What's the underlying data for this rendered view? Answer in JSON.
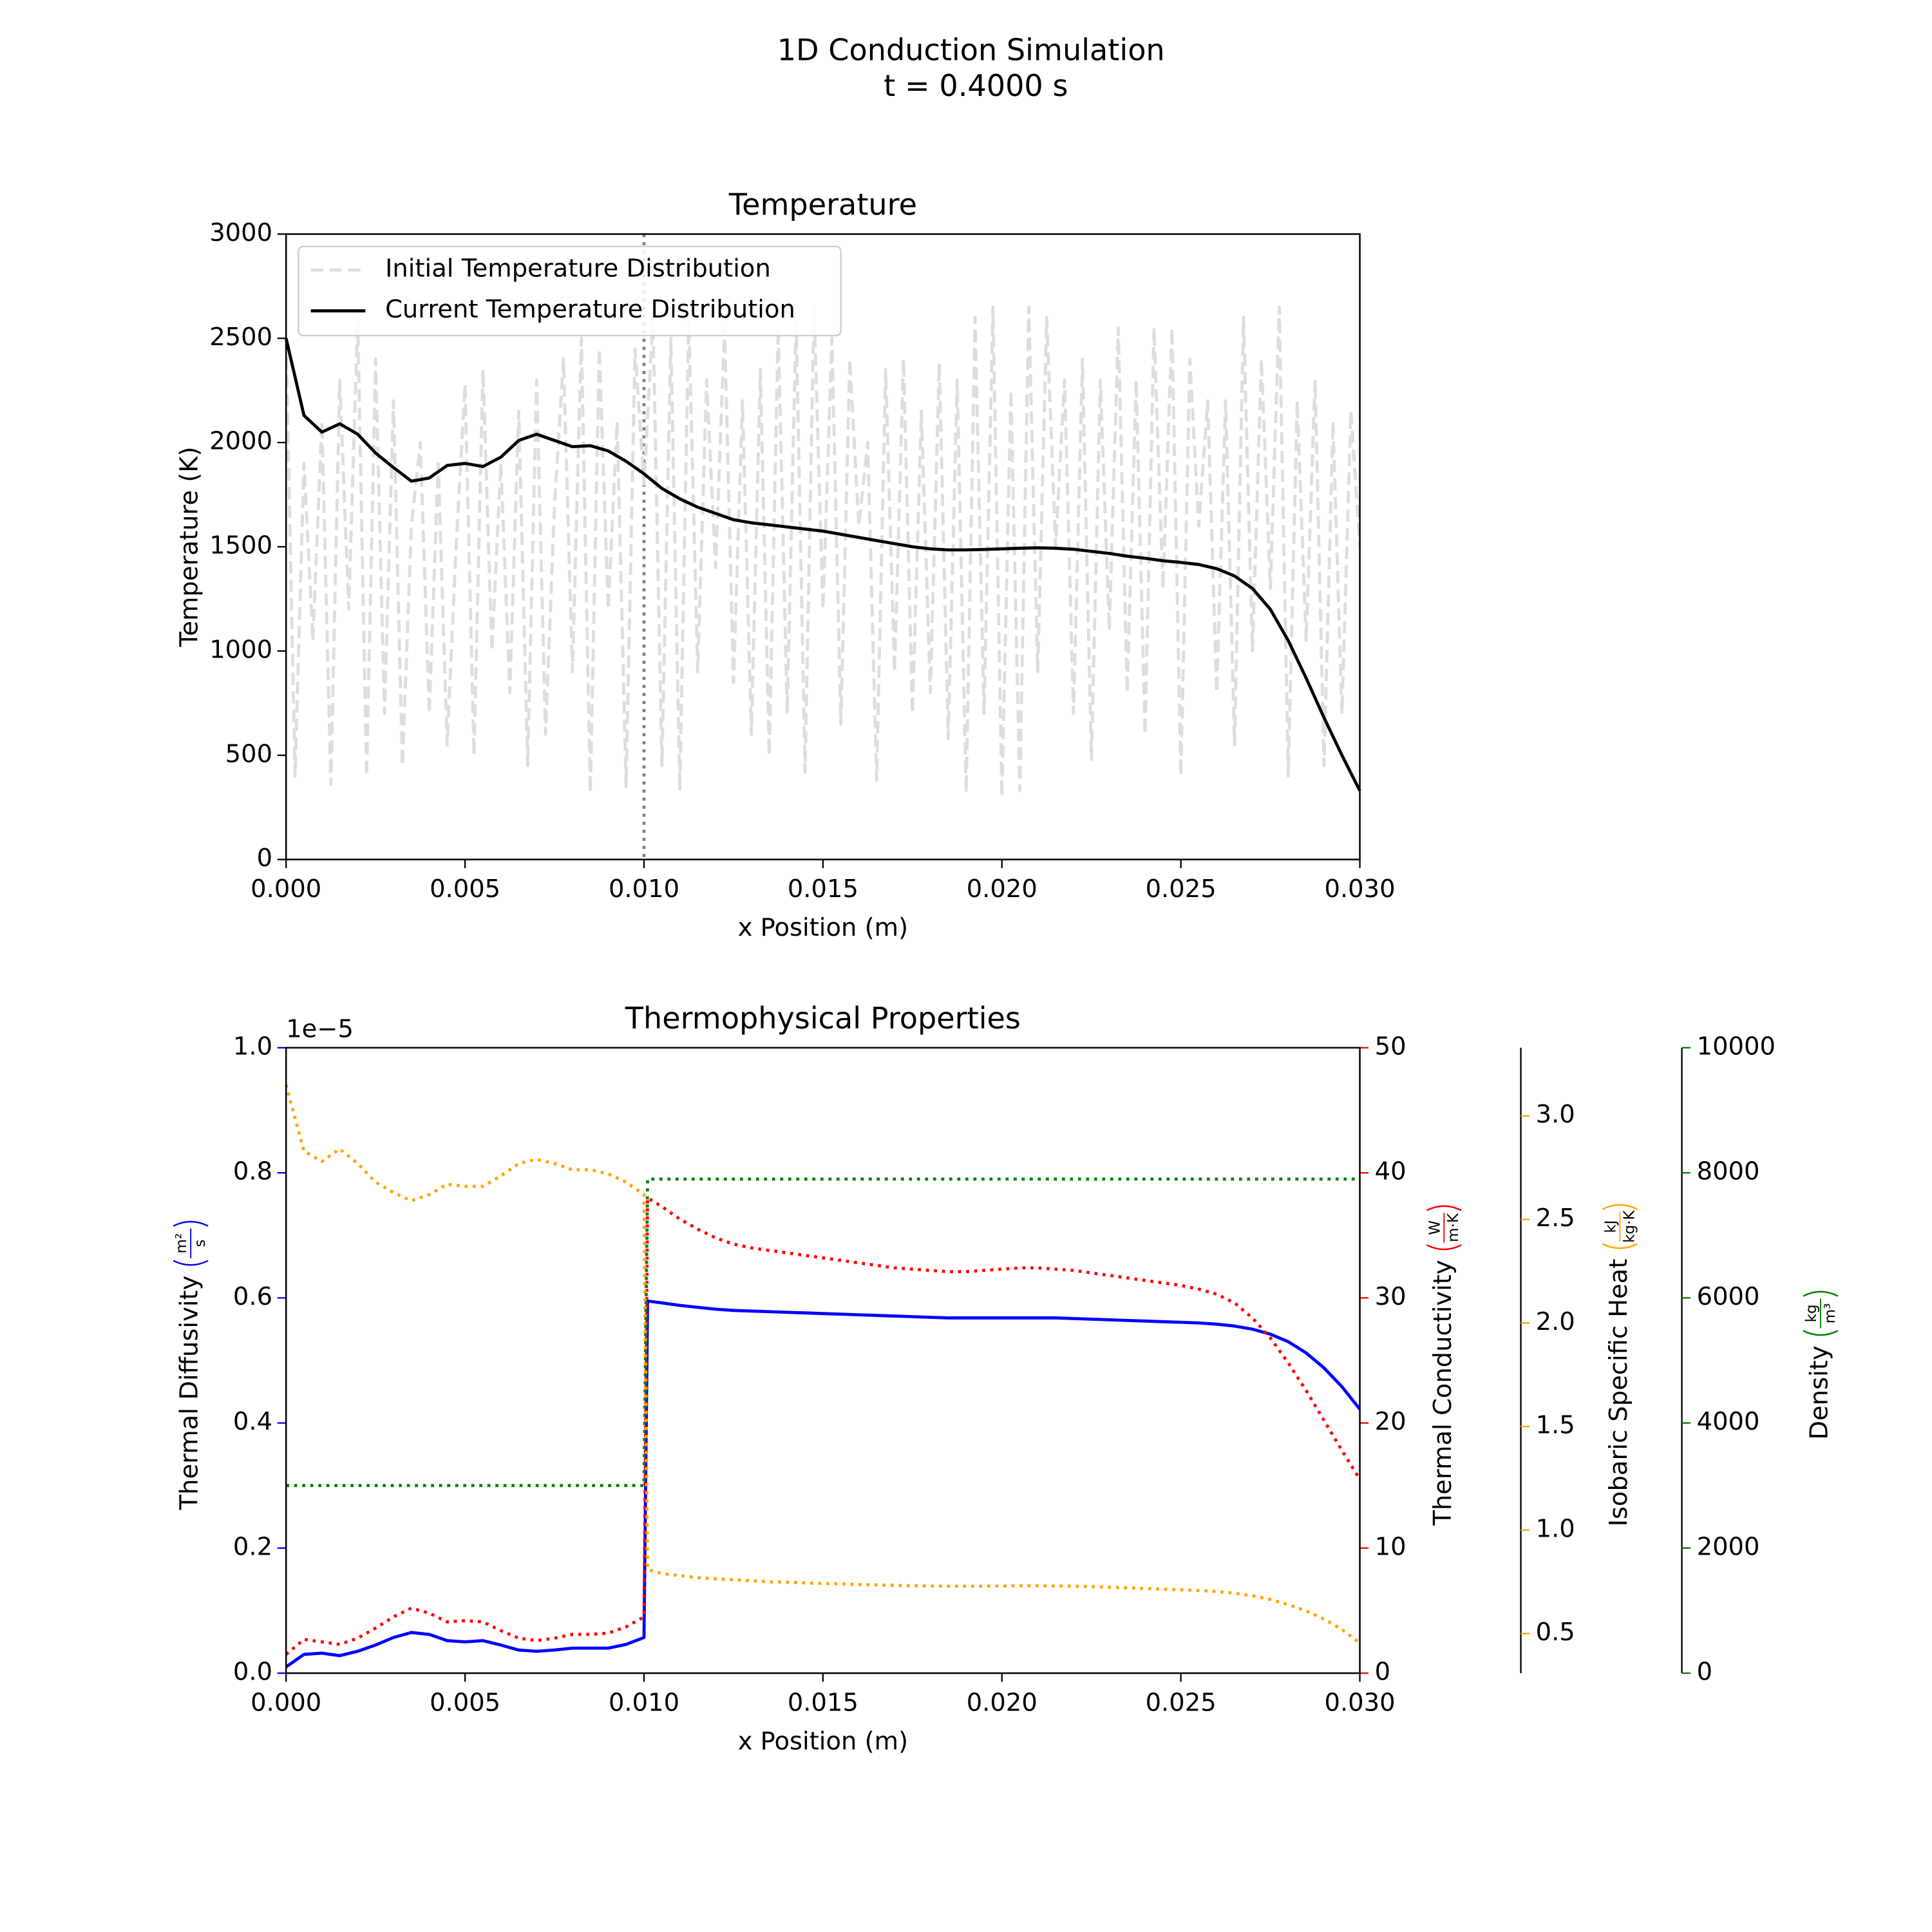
{
  "chart_data": [
    {
      "type": "line",
      "suptitle": "1D Conduction Simulation",
      "subtitle": "t = 0.4000 s",
      "title": "Temperature",
      "xlabel": "x Position (m)",
      "ylabel": "Temperature (K)",
      "xlim": [
        0,
        0.03
      ],
      "xticks": [
        {
          "value": 0,
          "label": "0.000"
        },
        0.005,
        {
          "value": 0.01,
          "label": "0.010"
        },
        0.015,
        {
          "value": 0.02,
          "label": "0.020"
        },
        0.025,
        {
          "value": 0.03,
          "label": "0.030"
        }
      ],
      "ylim": [
        0,
        3000
      ],
      "yticks": [
        0,
        500,
        1000,
        1500,
        2000,
        2500,
        3000
      ],
      "legend": "upper left",
      "vline_x": 0.01,
      "vline_color": "#808080",
      "series": [
        {
          "name": "Initial Temperature Distribution",
          "color": "#dddddd",
          "style": "dashed",
          "x": [
            0,
            0.00025,
            0.0005,
            0.00075,
            0.001,
            0.00125,
            0.0015,
            0.00175,
            0.002,
            0.00225,
            0.0025,
            0.00275,
            0.003,
            0.00325,
            0.0035,
            0.00375,
            0.004,
            0.00425,
            0.0045,
            0.00475,
            0.005,
            0.00525,
            0.0055,
            0.00575,
            0.006,
            0.00625,
            0.0065,
            0.00675,
            0.007,
            0.00725,
            0.0075,
            0.00775,
            0.008,
            0.00825,
            0.0085,
            0.00875,
            0.009,
            0.00925,
            0.0095,
            0.00975,
            0.01,
            0.01025,
            0.0105,
            0.01075,
            0.011,
            0.01125,
            0.0115,
            0.01175,
            0.012,
            0.01225,
            0.0125,
            0.01275,
            0.013,
            0.01325,
            0.0135,
            0.01375,
            0.014,
            0.01425,
            0.0145,
            0.01475,
            0.015,
            0.01525,
            0.0155,
            0.01575,
            0.016,
            0.01625,
            0.0165,
            0.01675,
            0.017,
            0.01725,
            0.0175,
            0.01775,
            0.018,
            0.01825,
            0.0185,
            0.01875,
            0.019,
            0.01925,
            0.0195,
            0.01975,
            0.02,
            0.02025,
            0.0205,
            0.02075,
            0.021,
            0.02125,
            0.0215,
            0.02175,
            0.022,
            0.02225,
            0.0225,
            0.02275,
            0.023,
            0.02325,
            0.0235,
            0.02375,
            0.024,
            0.02425,
            0.0245,
            0.02475,
            0.025,
            0.02525,
            0.0255,
            0.02575,
            0.026,
            0.02625,
            0.0265,
            0.02675,
            0.027,
            0.02725,
            0.0275,
            0.02775,
            0.028,
            0.02825,
            0.0285,
            0.02875,
            0.029,
            0.02925,
            0.0295,
            0.02975,
            0.03
          ],
          "values": [
            2500,
            400,
            1900,
            1050,
            2100,
            360,
            2300,
            1200,
            2600,
            400,
            2400,
            700,
            2200,
            450,
            1600,
            2000,
            700,
            1900,
            550,
            1500,
            2280,
            500,
            2350,
            1000,
            1900,
            800,
            2150,
            450,
            2300,
            600,
            1700,
            2400,
            900,
            2500,
            320,
            2450,
            1200,
            2100,
            350,
            2450,
            1800,
            2600,
            450,
            2500,
            330,
            2600,
            900,
            2300,
            1400,
            2550,
            850,
            2200,
            600,
            2350,
            500,
            2550,
            700,
            2600,
            420,
            2650,
            1200,
            2500,
            650,
            2400,
            1600,
            2000,
            380,
            2350,
            900,
            2400,
            700,
            2150,
            800,
            2380,
            580,
            2300,
            320,
            2600,
            700,
            2650,
            300,
            2250,
            330,
            2650,
            900,
            2600,
            1500,
            2300,
            700,
            2400,
            480,
            2300,
            1100,
            2550,
            800,
            2300,
            600,
            2550,
            1300,
            2550,
            400,
            2400,
            1600,
            2200,
            800,
            2200,
            550,
            2600,
            1000,
            2400,
            1300,
            2650,
            400,
            2200,
            1050,
            2300,
            450,
            2100,
            700,
            2150,
            1500
          ]
        },
        {
          "name": "Current Temperature Distribution",
          "color": "#000000",
          "style": "solid",
          "x": [
            0,
            0.0005,
            0.001,
            0.0015,
            0.002,
            0.0025,
            0.003,
            0.0035,
            0.004,
            0.0045,
            0.005,
            0.0055,
            0.006,
            0.0065,
            0.007,
            0.0075,
            0.008,
            0.0085,
            0.009,
            0.0095,
            0.01,
            0.0105,
            0.011,
            0.0115,
            0.012,
            0.0125,
            0.013,
            0.0135,
            0.014,
            0.0145,
            0.015,
            0.0155,
            0.016,
            0.0165,
            0.017,
            0.0175,
            0.018,
            0.0185,
            0.019,
            0.0195,
            0.02,
            0.0205,
            0.021,
            0.0215,
            0.022,
            0.0225,
            0.023,
            0.0235,
            0.024,
            0.0245,
            0.025,
            0.0255,
            0.026,
            0.0265,
            0.027,
            0.0275,
            0.028,
            0.0285,
            0.029,
            0.0295,
            0.03
          ],
          "values": [
            2500,
            2130,
            2050,
            2090,
            2040,
            1950,
            1880,
            1815,
            1830,
            1890,
            1900,
            1885,
            1930,
            2010,
            2040,
            2010,
            1980,
            1985,
            1960,
            1910,
            1850,
            1780,
            1730,
            1690,
            1660,
            1630,
            1615,
            1605,
            1595,
            1585,
            1575,
            1560,
            1545,
            1530,
            1515,
            1500,
            1490,
            1485,
            1485,
            1487,
            1490,
            1493,
            1495,
            1493,
            1488,
            1478,
            1468,
            1455,
            1445,
            1433,
            1425,
            1415,
            1395,
            1360,
            1300,
            1200,
            1050,
            870,
            680,
            500,
            330
          ]
        }
      ]
    },
    {
      "type": "line",
      "title": "Thermophysical Properties",
      "xlabel": "x Position (m)",
      "xlim": [
        0,
        0.03
      ],
      "xticks": [
        {
          "value": 0,
          "label": "0.000"
        },
        0.005,
        {
          "value": 0.01,
          "label": "0.010"
        },
        0.015,
        {
          "value": 0.02,
          "label": "0.020"
        },
        0.025,
        {
          "value": 0.03,
          "label": "0.030"
        }
      ],
      "ylabel": {
        "label": "Thermal Diffusivity",
        "unit_top": "m²",
        "unit_bottom": "s"
      },
      "y_offset_label": "1e−5",
      "ylim": [
        0,
        1
      ],
      "yticks": [
        {
          "value": 0,
          "label": "0.0"
        },
        0.2,
        0.4,
        0.6,
        0.8,
        {
          "value": 1,
          "label": "1.0"
        }
      ],
      "y2label": {
        "label": "Thermal Conductivity",
        "unit_top": "W",
        "unit_bottom": "m·K"
      },
      "y2lim": [
        0,
        50
      ],
      "y2ticks": [
        0,
        10,
        20,
        30,
        40,
        50
      ],
      "y3label": {
        "label": "Isobaric Specific Heat",
        "unit_top": "kJ",
        "unit_bottom": "kg·K"
      },
      "y3lim": [
        0.309,
        3.329
      ],
      "y3ticks": [
        0.5,
        {
          "value": 1,
          "label": "1.0"
        },
        1.5,
        {
          "value": 2,
          "label": "2.0"
        },
        2.5,
        {
          "value": 3,
          "label": "3.0"
        }
      ],
      "y4label": {
        "label": "Density",
        "unit_top": "kg",
        "unit_bottom": "m³"
      },
      "y4lim": [
        0,
        10000
      ],
      "y4ticks": [
        0,
        2000,
        4000,
        6000,
        8000,
        10000
      ],
      "x": [
        0,
        0.0005,
        0.001,
        0.0015,
        0.002,
        0.0025,
        0.003,
        0.0035,
        0.004,
        0.0045,
        0.005,
        0.0055,
        0.006,
        0.0065,
        0.007,
        0.0075,
        0.008,
        0.0085,
        0.009,
        0.0095,
        0.01,
        0.0101,
        0.0105,
        0.011,
        0.0115,
        0.012,
        0.0125,
        0.013,
        0.0135,
        0.014,
        0.0145,
        0.015,
        0.0155,
        0.016,
        0.0165,
        0.017,
        0.0175,
        0.018,
        0.0185,
        0.019,
        0.0195,
        0.02,
        0.0205,
        0.021,
        0.0215,
        0.022,
        0.0225,
        0.023,
        0.0235,
        0.024,
        0.0245,
        0.025,
        0.0255,
        0.026,
        0.0265,
        0.027,
        0.0275,
        0.028,
        0.0285,
        0.029,
        0.0295,
        0.03
      ],
      "series": [
        {
          "axis": "y",
          "color": "#0000ff",
          "style": "solid",
          "values": [
            0.01,
            0.03,
            0.032,
            0.028,
            0.035,
            0.045,
            0.057,
            0.065,
            0.062,
            0.052,
            0.05,
            0.052,
            0.045,
            0.037,
            0.035,
            0.037,
            0.04,
            0.04,
            0.04,
            0.046,
            0.057,
            0.595,
            0.592,
            0.588,
            0.585,
            0.582,
            0.58,
            0.579,
            0.578,
            0.577,
            0.576,
            0.575,
            0.574,
            0.573,
            0.572,
            0.571,
            0.57,
            0.569,
            0.568,
            0.568,
            0.568,
            0.568,
            0.568,
            0.568,
            0.568,
            0.567,
            0.566,
            0.565,
            0.564,
            0.563,
            0.562,
            0.561,
            0.56,
            0.558,
            0.555,
            0.55,
            0.542,
            0.53,
            0.512,
            0.488,
            0.458,
            0.422
          ]
        },
        {
          "axis": "y2",
          "color": "#ff0000",
          "style": "dotted",
          "values": [
            1.5,
            2.7,
            2.5,
            2.3,
            2.8,
            3.6,
            4.5,
            5.2,
            4.8,
            4.1,
            4.2,
            4.1,
            3.4,
            2.8,
            2.6,
            2.8,
            3.1,
            3.1,
            3.2,
            3.7,
            4.5,
            38.0,
            37.3,
            36.3,
            35.5,
            34.8,
            34.3,
            34.0,
            33.8,
            33.6,
            33.4,
            33.2,
            33.0,
            32.8,
            32.6,
            32.4,
            32.3,
            32.2,
            32.1,
            32.1,
            32.2,
            32.3,
            32.4,
            32.4,
            32.3,
            32.2,
            32.0,
            31.8,
            31.6,
            31.4,
            31.2,
            31.0,
            30.7,
            30.3,
            29.6,
            28.4,
            26.8,
            24.8,
            22.6,
            20.2,
            17.8,
            15.5
          ]
        },
        {
          "axis": "y3",
          "color": "#ffa500",
          "style": "dotted",
          "values": [
            3.15,
            2.83,
            2.78,
            2.84,
            2.77,
            2.68,
            2.63,
            2.59,
            2.62,
            2.67,
            2.66,
            2.66,
            2.71,
            2.77,
            2.79,
            2.77,
            2.74,
            2.74,
            2.72,
            2.68,
            2.62,
            0.81,
            0.79,
            0.78,
            0.77,
            0.765,
            0.76,
            0.755,
            0.75,
            0.748,
            0.745,
            0.742,
            0.74,
            0.737,
            0.735,
            0.733,
            0.731,
            0.73,
            0.729,
            0.729,
            0.729,
            0.73,
            0.731,
            0.731,
            0.73,
            0.729,
            0.727,
            0.724,
            0.721,
            0.718,
            0.715,
            0.712,
            0.708,
            0.703,
            0.695,
            0.683,
            0.665,
            0.64,
            0.61,
            0.57,
            0.52,
            0.455
          ]
        },
        {
          "axis": "y4",
          "color": "#008000",
          "style": "dotted",
          "values": [
            3000,
            3000,
            3000,
            3000,
            3000,
            3000,
            3000,
            3000,
            3000,
            3000,
            3000,
            3000,
            3000,
            3000,
            3000,
            3000,
            3000,
            3000,
            3000,
            3000,
            3000,
            7900,
            7900,
            7900,
            7900,
            7900,
            7900,
            7900,
            7900,
            7900,
            7900,
            7900,
            7900,
            7900,
            7900,
            7900,
            7900,
            7900,
            7900,
            7900,
            7900,
            7900,
            7900,
            7900,
            7900,
            7900,
            7900,
            7900,
            7900,
            7900,
            7900,
            7900,
            7900,
            7900,
            7900,
            7900,
            7900,
            7900,
            7900,
            7900,
            7900,
            7900
          ]
        }
      ]
    }
  ]
}
